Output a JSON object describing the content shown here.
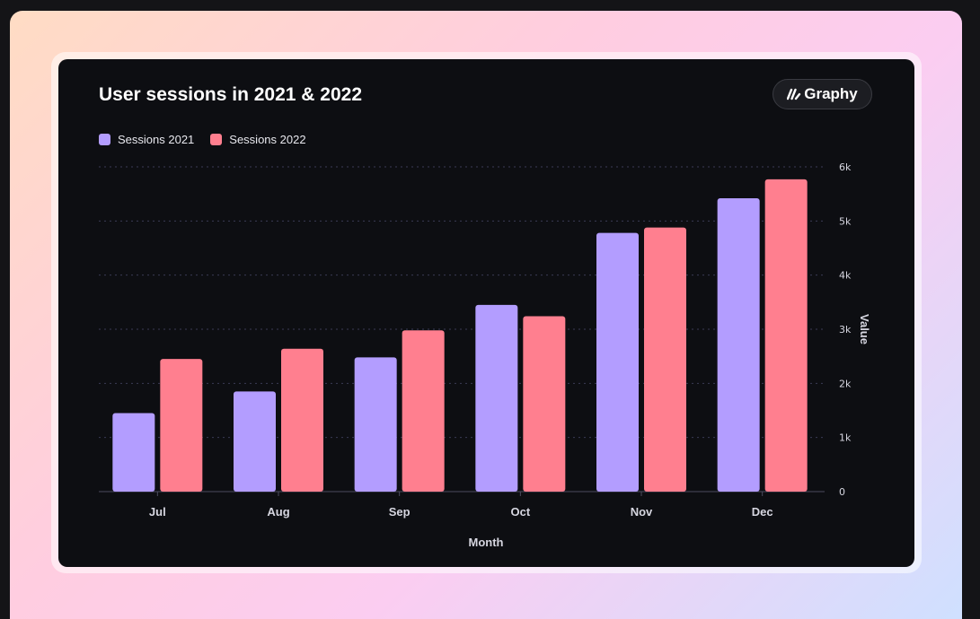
{
  "brand": {
    "label": "Graphy"
  },
  "colors": {
    "series_2021": "#b39dff",
    "series_2022": "#ff7f8f"
  },
  "chart_data": {
    "type": "bar",
    "title": "User sessions in 2021 & 2022",
    "xlabel": "Month",
    "ylabel": "Value",
    "categories": [
      "Jul",
      "Aug",
      "Sep",
      "Oct",
      "Nov",
      "Dec"
    ],
    "series": [
      {
        "name": "Sessions 2021",
        "values": [
          1450,
          1850,
          2480,
          3450,
          4780,
          5420
        ]
      },
      {
        "name": "Sessions 2022",
        "values": [
          2450,
          2640,
          2980,
          3240,
          4880,
          5770
        ]
      }
    ],
    "ylim": [
      0,
      6000
    ],
    "yticks": [
      "0",
      "1k",
      "2k",
      "3k",
      "4k",
      "5k",
      "6k"
    ],
    "grid": true,
    "legend_position": "top-left"
  }
}
